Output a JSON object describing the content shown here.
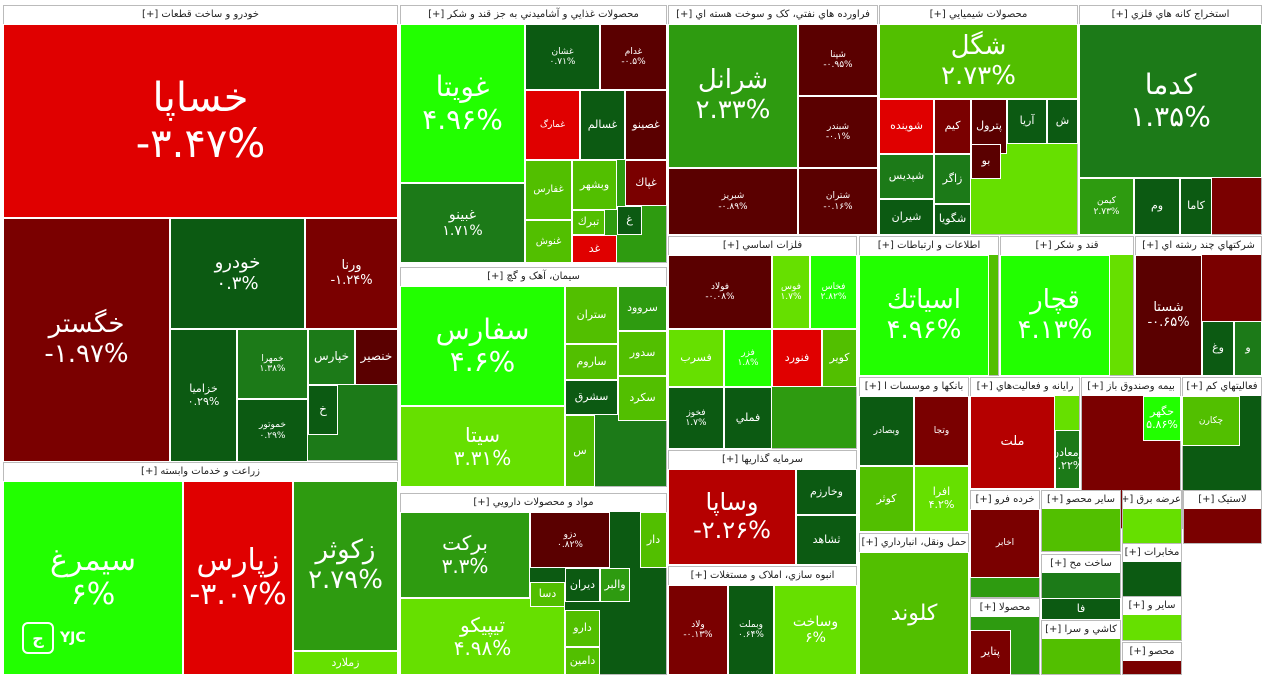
{
  "colors": {
    "c1": "#E00000",
    "c2": "#B50000",
    "c3": "#7A0000",
    "c4": "#5A0000",
    "c5": "#0C5A12",
    "c6": "#1C7A18",
    "c7": "#2E9B10",
    "c8": "#52BF00",
    "c9": "#66E000",
    "c10": "#22FF00"
  },
  "logo": {
    "text": "YJC",
    "icon": "yjc-logo-icon"
  },
  "sections": [
    {
      "title": "خودرو و ساخت قطعات [+]"
    },
    {
      "title": "محصولات غذايي و آشاميدني به جز قند و شکر [+]"
    },
    {
      "title": "فراورده هاي نفتي، کک و سوخت هسته اي [+]"
    },
    {
      "title": "محصولات شيميايي [+]"
    },
    {
      "title": "استخراج کانه هاي فلزي [+]"
    },
    {
      "title": "زراعت و خدمات وابسته [+]"
    },
    {
      "title": "سيمان، آهک و گچ [+]"
    },
    {
      "title": "فلزات اساسي [+]"
    },
    {
      "title": "اطلاعات و ارتباطات [+]"
    },
    {
      "title": "قند و شکر [+]"
    },
    {
      "title": "شرکتهاي چند رشته اي [+]"
    },
    {
      "title": "مواد و محصولات دارويي [+]"
    },
    {
      "title": "سرمايه گذاريها [+]"
    },
    {
      "title": "انبوه سازي، املاک و مستغلات [+]"
    },
    {
      "title": "بانکها و موسسات ا [+]"
    },
    {
      "title": "رايانه و فعاليت‌هاي [+]"
    },
    {
      "title": "بيمه وصندوق باز [+]"
    },
    {
      "title": "فعاليتهاي کم [+]"
    },
    {
      "title": "حمل ونقل، انبارداري [+]"
    },
    {
      "title": "خرده فرو [+]"
    },
    {
      "title": "ساير محصو [+]"
    },
    {
      "title": "عرضه برق [+]"
    },
    {
      "title": "لاستيک [+]"
    },
    {
      "title": "مخابرات [+]"
    },
    {
      "title": "ساخت مح [+]"
    },
    {
      "title": "محصولا [+]"
    },
    {
      "title": "کاشي و سرا [+]"
    },
    {
      "title": "ساير و [+]"
    },
    {
      "title": "محصو [+]"
    }
  ],
  "tiles": [
    {
      "name": "خساپا",
      "change": "-۳.۴۷%",
      "color": "c1"
    },
    {
      "name": "خگستر",
      "change": "-۱.۹۷%",
      "color": "c3"
    },
    {
      "name": "خودرو",
      "change": "۰.۳%",
      "color": "c5"
    },
    {
      "name": "ورنا",
      "change": "-۱.۲۴%",
      "color": "c3"
    },
    {
      "name": "خزاميا",
      "change": "۰.۲۹%",
      "color": "c5"
    },
    {
      "name": "خمهرا",
      "change": "۱.۳۸%",
      "color": "c6"
    },
    {
      "name": "خموتور",
      "change": "۰.۲۹%",
      "color": "c5"
    },
    {
      "name": "خپارس",
      "change": "",
      "color": "c6"
    },
    {
      "name": "خنصير",
      "change": "",
      "color": "c4"
    },
    {
      "name": "خ",
      "change": "",
      "color": "c5"
    },
    {
      "name": "غويتا",
      "change": "۴.۹۶%",
      "color": "c10"
    },
    {
      "name": "غبينو",
      "change": "۱.۷۱%",
      "color": "c6"
    },
    {
      "name": "غشان",
      "change": "۰.۷۱%",
      "color": "c5"
    },
    {
      "name": "غدام",
      "change": "-۰.۵%",
      "color": "c4"
    },
    {
      "name": "غمارگ",
      "change": "",
      "color": "c1"
    },
    {
      "name": "غسالم",
      "change": "",
      "color": "c5"
    },
    {
      "name": "غصينو",
      "change": "",
      "color": "c4"
    },
    {
      "name": "غفارس",
      "change": "",
      "color": "c8"
    },
    {
      "name": "وبشهر",
      "change": "",
      "color": "c8"
    },
    {
      "name": "غپاك",
      "change": "",
      "color": "c3"
    },
    {
      "name": "تبرك",
      "change": "",
      "color": "c8"
    },
    {
      "name": "غ",
      "change": "",
      "color": "c5"
    },
    {
      "name": "غنوش",
      "change": "",
      "color": "c8"
    },
    {
      "name": "غد",
      "change": "",
      "color": "c1"
    },
    {
      "name": "شرانل",
      "change": "۲.۳۳%",
      "color": "c7"
    },
    {
      "name": "شپنا",
      "change": "-۰.۹۵%",
      "color": "c4"
    },
    {
      "name": "شبندر",
      "change": "-۰.۱%",
      "color": "c4"
    },
    {
      "name": "شبريز",
      "change": "-۰.۸۹%",
      "color": "c4"
    },
    {
      "name": "شتران",
      "change": "-۰.۱۶%",
      "color": "c4"
    },
    {
      "name": "شگل",
      "change": "۲.۷۳%",
      "color": "c8"
    },
    {
      "name": "شوينده",
      "change": "",
      "color": "c1"
    },
    {
      "name": "كيم",
      "change": "",
      "color": "c3"
    },
    {
      "name": "پترول",
      "change": "",
      "color": "c4"
    },
    {
      "name": "آريا",
      "change": "",
      "color": "c5"
    },
    {
      "name": "ش",
      "change": "",
      "color": "c5"
    },
    {
      "name": "زاگر",
      "change": "",
      "color": "c6"
    },
    {
      "name": "شپديس",
      "change": "",
      "color": "c6"
    },
    {
      "name": "شيران",
      "change": "",
      "color": "c5"
    },
    {
      "name": "شگويا",
      "change": "",
      "color": "c5"
    },
    {
      "name": "بو",
      "change": "",
      "color": "c4"
    },
    {
      "name": "كدما",
      "change": "۱.۳۵%",
      "color": "c6"
    },
    {
      "name": "كاما",
      "change": "",
      "color": "c5"
    },
    {
      "name": "كيمن",
      "change": "۲.۷۳%",
      "color": "c7"
    },
    {
      "name": "وم",
      "change": "",
      "color": "c5"
    },
    {
      "name": "سيمرغ",
      "change": "۶%",
      "color": "c10"
    },
    {
      "name": "زپارس",
      "change": "-۳.۰۷%",
      "color": "c1"
    },
    {
      "name": "زكوثر",
      "change": "۲.۷۹%",
      "color": "c7"
    },
    {
      "name": "زملارد",
      "change": "",
      "color": "c9"
    },
    {
      "name": "سفارس",
      "change": "۴.۶%",
      "color": "c10"
    },
    {
      "name": "سيتا",
      "change": "۳.۳۱%",
      "color": "c9"
    },
    {
      "name": "سروود",
      "change": "",
      "color": "c7"
    },
    {
      "name": "ستران",
      "change": "",
      "color": "c8"
    },
    {
      "name": "سدور",
      "change": "",
      "color": "c8"
    },
    {
      "name": "ساروم",
      "change": "",
      "color": "c8"
    },
    {
      "name": "سكرد",
      "change": "",
      "color": "c8"
    },
    {
      "name": "سشرق",
      "change": "",
      "color": "c5"
    },
    {
      "name": "س",
      "change": "",
      "color": "c8"
    },
    {
      "name": "فولاد",
      "change": "-۰.۰۸%",
      "color": "c4"
    },
    {
      "name": "فوس",
      "change": "۱.۷%",
      "color": "c9"
    },
    {
      "name": "فخاس",
      "change": "۲.۸۲%",
      "color": "c10"
    },
    {
      "name": "فنورد",
      "change": "",
      "color": "c1"
    },
    {
      "name": "كوير",
      "change": "",
      "color": "c8"
    },
    {
      "name": "فملي",
      "change": "",
      "color": "c5"
    },
    {
      "name": "فخوز",
      "change": "۱.۷%",
      "color": "c5"
    },
    {
      "name": "فزر",
      "change": "۱.۸%",
      "color": "c10"
    },
    {
      "name": "فسرب",
      "change": "",
      "color": "c9"
    },
    {
      "name": "اسياتك",
      "change": "۴.۹۶%",
      "color": "c10"
    },
    {
      "name": "قچار",
      "change": "۴.۱۳%",
      "color": "c10"
    },
    {
      "name": "شستا",
      "change": "-۰.۶۵%",
      "color": "c4"
    },
    {
      "name": "وغ",
      "change": "",
      "color": "c5"
    },
    {
      "name": "و",
      "change": "",
      "color": "c6"
    },
    {
      "name": "بركت",
      "change": "۳.۳%",
      "color": "c7"
    },
    {
      "name": "تيپيكو",
      "change": "۴.۹۸%",
      "color": "c9"
    },
    {
      "name": "ديران",
      "change": "",
      "color": "c5"
    },
    {
      "name": "والبر",
      "change": "",
      "color": "c7"
    },
    {
      "name": "دارو",
      "change": "",
      "color": "c8"
    },
    {
      "name": "دامين",
      "change": "",
      "color": "c8"
    },
    {
      "name": "دسا",
      "change": "",
      "color": "c8"
    },
    {
      "name": "دزو",
      "change": "۰.۸۲%",
      "color": "c4"
    },
    {
      "name": "دار",
      "change": "",
      "color": "c8"
    },
    {
      "name": "وساپا",
      "change": "-۲.۲۶%",
      "color": "c2"
    },
    {
      "name": "وخارزم",
      "change": "",
      "color": "c5"
    },
    {
      "name": "ثشاهد",
      "change": "",
      "color": "c5"
    },
    {
      "name": "وساخت",
      "change": "۶%",
      "color": "c9"
    },
    {
      "name": "ولاد",
      "change": "-۰.۱۳%",
      "color": "c3"
    },
    {
      "name": "وبملت",
      "change": "۰.۶۴%",
      "color": "c5"
    },
    {
      "name": "وبصادر",
      "change": "",
      "color": "c5"
    },
    {
      "name": "وتجا",
      "change": "",
      "color": "c3"
    },
    {
      "name": "افرا",
      "change": "۴.۲%",
      "color": "c9"
    },
    {
      "name": "كوثر",
      "change": "",
      "color": "c8"
    },
    {
      "name": "ملت",
      "change": "",
      "color": "c2"
    },
    {
      "name": "ومعادن",
      "change": "۱.۲۲%",
      "color": "c6"
    },
    {
      "name": "حگهر",
      "change": "۵.۸۶%",
      "color": "c10"
    },
    {
      "name": "چكارن",
      "change": "",
      "color": "c8"
    },
    {
      "name": "كلوند",
      "change": "",
      "color": "c8"
    },
    {
      "name": "اخابر",
      "change": "",
      "color": "c3"
    },
    {
      "name": "پتاير",
      "change": "",
      "color": "c3"
    },
    {
      "name": "فا",
      "change": "",
      "color": "c5"
    }
  ]
}
